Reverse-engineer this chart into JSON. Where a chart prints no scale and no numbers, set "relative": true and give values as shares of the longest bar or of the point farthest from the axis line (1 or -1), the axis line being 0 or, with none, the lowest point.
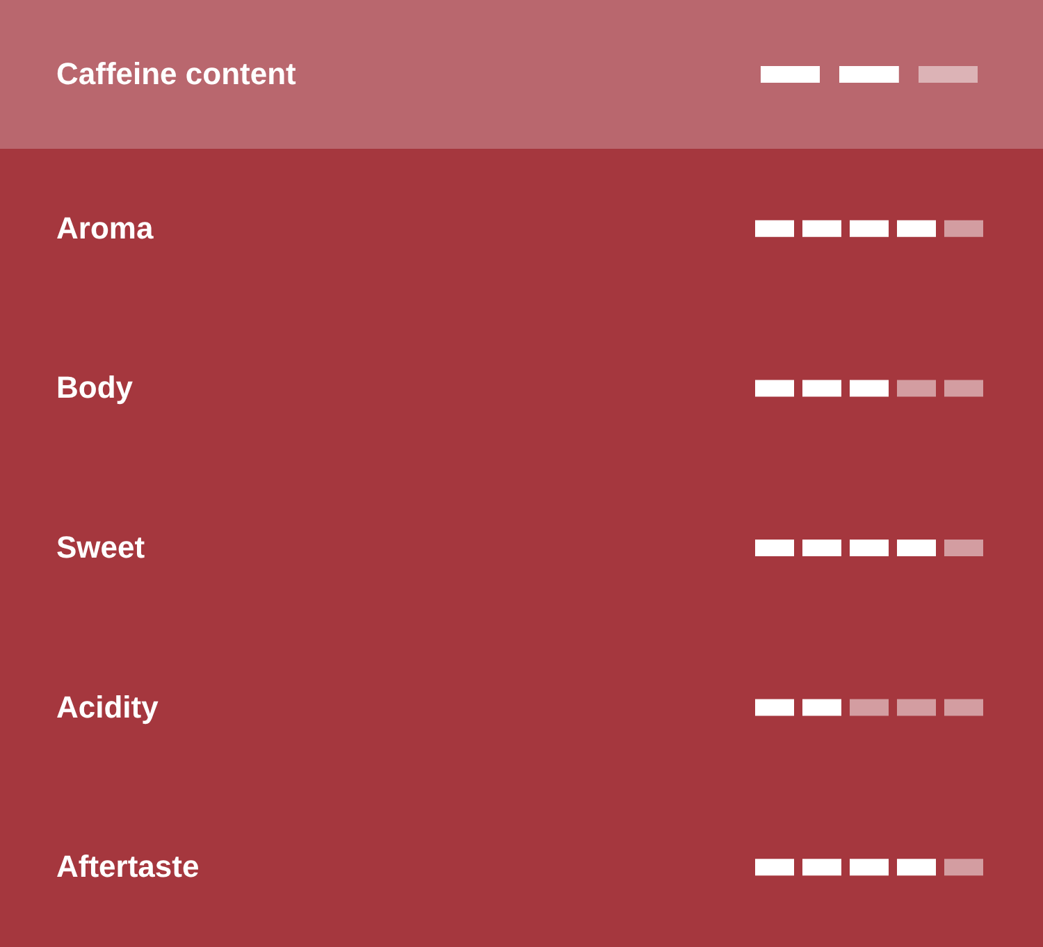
{
  "chart_data": [
    {
      "type": "bar",
      "orientation": "horizontal",
      "stacked": true,
      "relative": true,
      "categories": [
        "Caffeine content"
      ],
      "series": [
        {
          "color": "#ffffff",
          "values": [
            0.667
          ]
        },
        {
          "color": "#dcb3b6",
          "values": [
            0.333
          ]
        }
      ],
      "bands": [
        {
          "axis": "y",
          "from": "Caffeine content",
          "to": "Caffeine content",
          "color": "#b9676e"
        }
      ]
    },
    {
      "type": "bar",
      "orientation": "horizontal",
      "stacked": true,
      "relative": true,
      "categories": [
        "Aroma",
        "Body",
        "Sweet",
        "Acidity",
        "Aftertaste"
      ],
      "series": [
        {
          "color": "#ffffff",
          "values": [
            0.8,
            0.6,
            0.8,
            0.4,
            0.8
          ]
        },
        {
          "color": "#d39da1",
          "values": [
            0.2,
            0.4,
            0.2,
            0.6,
            0.2
          ]
        }
      ]
    }
  ]
}
